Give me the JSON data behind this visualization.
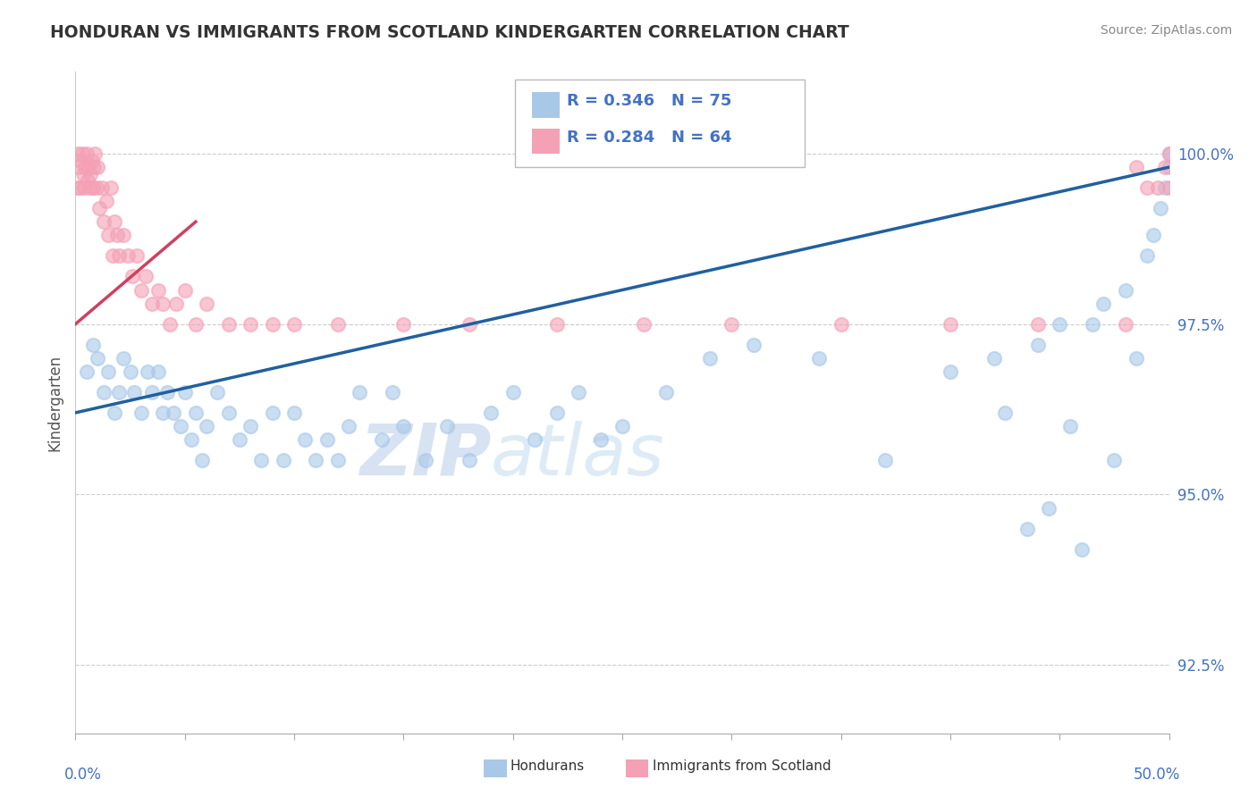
{
  "title": "HONDURAN VS IMMIGRANTS FROM SCOTLAND KINDERGARTEN CORRELATION CHART",
  "source": "Source: ZipAtlas.com",
  "ylabel": "Kindergarten",
  "xlim": [
    0.0,
    50.0
  ],
  "ylim": [
    91.5,
    101.2
  ],
  "yticks": [
    92.5,
    95.0,
    97.5,
    100.0
  ],
  "ytick_labels": [
    "92.5%",
    "95.0%",
    "97.5%",
    "100.0%"
  ],
  "blue_color": "#a8c8e8",
  "pink_color": "#f4a0b5",
  "blue_line_color": "#2060a0",
  "pink_line_color": "#d04060",
  "blue_x": [
    0.5,
    0.8,
    1.0,
    1.3,
    1.5,
    1.8,
    2.0,
    2.2,
    2.5,
    2.7,
    3.0,
    3.3,
    3.5,
    3.8,
    4.0,
    4.2,
    4.5,
    4.8,
    5.0,
    5.3,
    5.5,
    5.8,
    6.0,
    6.5,
    7.0,
    7.5,
    8.0,
    8.5,
    9.0,
    9.5,
    10.0,
    10.5,
    11.0,
    11.5,
    12.0,
    12.5,
    13.0,
    14.0,
    14.5,
    15.0,
    16.0,
    17.0,
    18.0,
    19.0,
    20.0,
    21.0,
    22.0,
    23.0,
    24.0,
    25.0,
    27.0,
    29.0,
    31.0,
    34.0,
    37.0,
    40.0,
    42.0,
    43.5,
    44.0,
    44.5,
    45.0,
    45.5,
    46.0,
    46.5,
    47.0,
    47.5,
    48.0,
    48.5,
    49.0,
    49.3,
    49.6,
    49.8,
    50.0,
    42.5,
    50.0
  ],
  "blue_y": [
    96.8,
    97.2,
    97.0,
    96.5,
    96.8,
    96.2,
    96.5,
    97.0,
    96.8,
    96.5,
    96.2,
    96.8,
    96.5,
    96.8,
    96.2,
    96.5,
    96.2,
    96.0,
    96.5,
    95.8,
    96.2,
    95.5,
    96.0,
    96.5,
    96.2,
    95.8,
    96.0,
    95.5,
    96.2,
    95.5,
    96.2,
    95.8,
    95.5,
    95.8,
    95.5,
    96.0,
    96.5,
    95.8,
    96.5,
    96.0,
    95.5,
    96.0,
    95.5,
    96.2,
    96.5,
    95.8,
    96.2,
    96.5,
    95.8,
    96.0,
    96.5,
    97.0,
    97.2,
    97.0,
    95.5,
    96.8,
    97.0,
    94.5,
    97.2,
    94.8,
    97.5,
    96.0,
    94.2,
    97.5,
    97.8,
    95.5,
    98.0,
    97.0,
    98.5,
    98.8,
    99.2,
    99.5,
    100.0,
    96.2,
    99.8
  ],
  "pink_x": [
    0.05,
    0.1,
    0.15,
    0.2,
    0.25,
    0.3,
    0.35,
    0.4,
    0.45,
    0.5,
    0.55,
    0.6,
    0.65,
    0.7,
    0.75,
    0.8,
    0.85,
    0.9,
    0.95,
    1.0,
    1.1,
    1.2,
    1.3,
    1.4,
    1.5,
    1.6,
    1.7,
    1.8,
    1.9,
    2.0,
    2.2,
    2.4,
    2.6,
    2.8,
    3.0,
    3.2,
    3.5,
    3.8,
    4.0,
    4.3,
    4.6,
    5.0,
    5.5,
    6.0,
    7.0,
    8.0,
    9.0,
    10.0,
    12.0,
    15.0,
    18.0,
    22.0,
    26.0,
    30.0,
    35.0,
    40.0,
    44.0,
    48.0,
    50.0,
    49.5,
    49.8,
    50.0,
    48.5,
    49.0
  ],
  "pink_y": [
    99.5,
    100.0,
    99.8,
    99.5,
    99.9,
    100.0,
    99.7,
    99.5,
    99.8,
    100.0,
    99.6,
    99.8,
    99.5,
    99.7,
    99.9,
    99.5,
    99.8,
    100.0,
    99.5,
    99.8,
    99.2,
    99.5,
    99.0,
    99.3,
    98.8,
    99.5,
    98.5,
    99.0,
    98.8,
    98.5,
    98.8,
    98.5,
    98.2,
    98.5,
    98.0,
    98.2,
    97.8,
    98.0,
    97.8,
    97.5,
    97.8,
    98.0,
    97.5,
    97.8,
    97.5,
    97.5,
    97.5,
    97.5,
    97.5,
    97.5,
    97.5,
    97.5,
    97.5,
    97.5,
    97.5,
    97.5,
    97.5,
    97.5,
    100.0,
    99.5,
    99.8,
    99.5,
    99.8,
    99.5
  ],
  "blue_trend_x": [
    0,
    50
  ],
  "blue_trend_y": [
    96.2,
    99.8
  ],
  "pink_trend_x": [
    0,
    5.5
  ],
  "pink_trend_y": [
    97.5,
    99.0
  ],
  "watermark_zip": "ZIP",
  "watermark_atlas": "atlas"
}
